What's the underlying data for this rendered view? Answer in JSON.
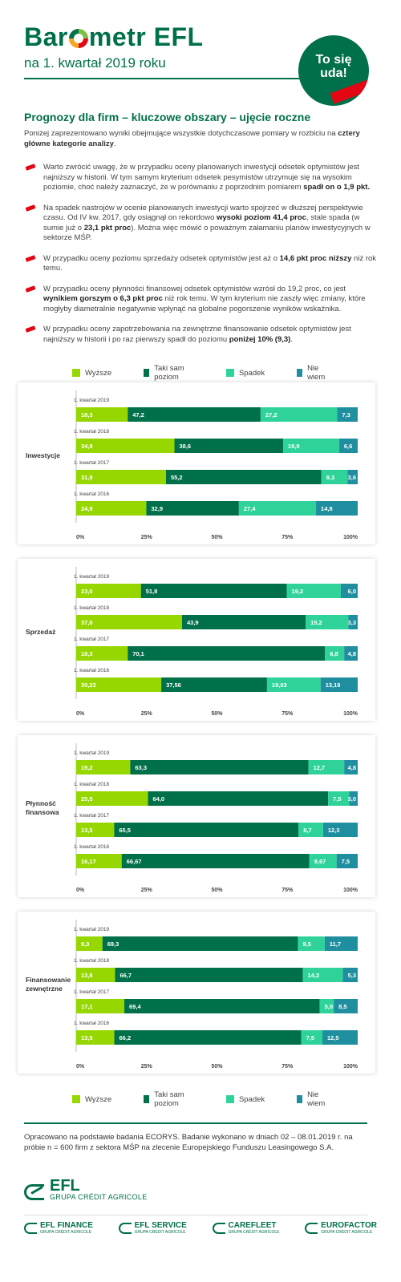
{
  "header": {
    "logo_text_left": "Bar",
    "logo_text_right": "metr EFL",
    "subtitle": "na 1. kwartał 2019 roku",
    "badge_line1": "To się",
    "badge_line2": "uda!"
  },
  "section_title": "Prognozy dla firm – kluczowe obszary – ujęcie roczne",
  "intro": {
    "text_before": "Poniżej zaprezentowano wyniki obejmujące wszystkie dotychczasowe pomiary w rozbiciu na ",
    "bold": "cztery główne kategorie analizy",
    "text_after": "."
  },
  "bullets": [
    {
      "parts": [
        {
          "t": "Warto zwrócić uwagę, że w przypadku oceny planowanych inwestycji odsetek optymistów jest najniższy w historii. W tym samym kryterium odsetek pesymistów utrzymuje się na wysokim poziomie, choć należy zaznaczyć, że w porównaniu z poprzednim pomiarem ",
          "b": false
        },
        {
          "t": "spadł on o 1,9 pkt.",
          "b": true
        }
      ]
    },
    {
      "parts": [
        {
          "t": "Na spadek nastrojów w ocenie planowanych inwestycji warto spojrzeć w dłuższej perspektywie czasu. Od IV kw. 2017, gdy osiągnął on rekordowo ",
          "b": false
        },
        {
          "t": "wysoki poziom 41,4 proc",
          "b": true
        },
        {
          "t": ", stale spada (w sumie już o ",
          "b": false
        },
        {
          "t": "23,1 pkt proc",
          "b": true
        },
        {
          "t": "). Można więc mówić o poważnym załamaniu planów inwestycyjnych w sektorze MŚP.",
          "b": false
        }
      ]
    },
    {
      "parts": [
        {
          "t": "W przypadku oceny poziomu sprzedaży odsetek optymistów jest aż o ",
          "b": false
        },
        {
          "t": "14,6 pkt proc niższy",
          "b": true
        },
        {
          "t": " niż rok temu.",
          "b": false
        }
      ]
    },
    {
      "parts": [
        {
          "t": "W przypadku oceny płynności finansowej odsetek optymistów wzrósł do 19,2 proc, co jest ",
          "b": false
        },
        {
          "t": "wynikiem gorszym o 6,3 pkt proc",
          "b": true
        },
        {
          "t": " niż rok temu. W tym kryterium nie zaszły więc zmiany, które mogłyby diametralnie negatywnie wpłynąć na globalne pogorszenie wyników wskaźnika.",
          "b": false
        }
      ]
    },
    {
      "parts": [
        {
          "t": "W przypadku oceny zapotrzebowania na zewnętrzne finansowanie odsetek optymistów jest najniższy w historii i po raz pierwszy spadł do poziomu ",
          "b": false
        },
        {
          "t": "poniżej 10% (9,3)",
          "b": true
        },
        {
          "t": ".",
          "b": false
        }
      ]
    }
  ],
  "legend": [
    {
      "label": "Wyższe",
      "color": "#97d700"
    },
    {
      "label": "Taki sam poziom",
      "color": "#00704a"
    },
    {
      "label": "Spadek",
      "color": "#2fd39a"
    },
    {
      "label": "Nie wiem",
      "color": "#1f8fa0"
    }
  ],
  "chart_data": [
    {
      "type": "bar",
      "orientation": "horizontal",
      "stacked": true,
      "title": "Inwestycje",
      "categories": [
        "1. kwartał 2019",
        "1. kwartał 2018",
        "1. kwartał 2017",
        "1. kwartał 2016"
      ],
      "series": [
        {
          "name": "Wyższe",
          "values": [
            18.3,
            34.9,
            31.9,
            24.9
          ],
          "labels": [
            "18,3",
            "34,9",
            "31,9",
            "24,9"
          ]
        },
        {
          "name": "Taki sam poziom",
          "values": [
            47.2,
            38.6,
            55.2,
            32.9
          ],
          "labels": [
            "47,2",
            "38,6",
            "55,2",
            "32,9"
          ]
        },
        {
          "name": "Spadek",
          "values": [
            27.2,
            19.9,
            9.3,
            27.4
          ],
          "labels": [
            "27,2",
            "19,9",
            "9,3",
            "27,4"
          ]
        },
        {
          "name": "Nie wiem",
          "values": [
            7.3,
            6.6,
            3.6,
            14.8
          ],
          "labels": [
            "7,3",
            "6,6",
            "3,6",
            "14,8"
          ]
        }
      ],
      "xlim": [
        0,
        100
      ],
      "xticks": [
        "0%",
        "25%",
        "50%",
        "75%",
        "100%"
      ]
    },
    {
      "type": "bar",
      "orientation": "horizontal",
      "stacked": true,
      "title": "Sprzedaż",
      "categories": [
        "1. kwartał 2019",
        "1. kwartał 2018",
        "1. kwartał 2017",
        "1. kwartał 2016"
      ],
      "series": [
        {
          "name": "Wyższe",
          "values": [
            23.0,
            37.6,
            18.3,
            30.22
          ],
          "labels": [
            "23,0",
            "37,6",
            "18,3",
            "30,22"
          ]
        },
        {
          "name": "Taki sam poziom",
          "values": [
            51.8,
            43.9,
            70.1,
            37.56
          ],
          "labels": [
            "51,8",
            "43,9",
            "70,1",
            "37,56"
          ]
        },
        {
          "name": "Spadek",
          "values": [
            19.2,
            15.2,
            6.8,
            19.03
          ],
          "labels": [
            "19,2",
            "15,2",
            "6,8",
            "19,03"
          ]
        },
        {
          "name": "Nie wiem",
          "values": [
            6.0,
            3.3,
            4.8,
            13.19
          ],
          "labels": [
            "6,0",
            "3,3",
            "4,8",
            "13,19"
          ]
        }
      ],
      "xlim": [
        0,
        100
      ],
      "xticks": [
        "0%",
        "25%",
        "50%",
        "75%",
        "100%"
      ]
    },
    {
      "type": "bar",
      "orientation": "horizontal",
      "stacked": true,
      "title": "Płynność finansowa",
      "categories": [
        "1. kwartał 2019",
        "1. kwartał 2018",
        "1. kwartał 2017",
        "1. kwartał 2016"
      ],
      "series": [
        {
          "name": "Wyższe",
          "values": [
            19.2,
            25.5,
            13.5,
            16.17
          ],
          "labels": [
            "19,2",
            "25,5",
            "13,5",
            "16,17"
          ]
        },
        {
          "name": "Taki sam poziom",
          "values": [
            63.3,
            64.0,
            65.5,
            66.67
          ],
          "labels": [
            "63,3",
            "64,0",
            "65,5",
            "66,67"
          ]
        },
        {
          "name": "Spadek",
          "values": [
            12.7,
            7.5,
            8.7,
            9.67
          ],
          "labels": [
            "12,7",
            "7,5",
            "8,7",
            "9,67"
          ]
        },
        {
          "name": "Nie wiem",
          "values": [
            4.8,
            3.0,
            12.3,
            7.5
          ],
          "labels": [
            "4,8",
            "3,0",
            "12,3",
            "7,5"
          ]
        }
      ],
      "xlim": [
        0,
        100
      ],
      "xticks": [
        "0%",
        "25%",
        "50%",
        "75%",
        "100%"
      ]
    },
    {
      "type": "bar",
      "orientation": "horizontal",
      "stacked": true,
      "title": "Finansowanie zewnętrzne",
      "categories": [
        "1. kwartał 2019",
        "1. kwartał 2018",
        "1. kwartał 2017",
        "1. kwartał 2016"
      ],
      "series": [
        {
          "name": "Wyższe",
          "values": [
            9.3,
            13.8,
            17.1,
            13.5
          ],
          "labels": [
            "9,3",
            "13,8",
            "17,1",
            "13,5"
          ]
        },
        {
          "name": "Taki sam poziom",
          "values": [
            69.3,
            66.7,
            69.4,
            66.2
          ],
          "labels": [
            "69,3",
            "66,7",
            "69,4",
            "66,2"
          ]
        },
        {
          "name": "Spadek",
          "values": [
            9.5,
            14.2,
            5.0,
            7.5
          ],
          "labels": [
            "9,5",
            "14,2",
            "5,0",
            "7,5"
          ]
        },
        {
          "name": "Nie wiem",
          "values": [
            11.7,
            5.3,
            8.5,
            12.5
          ],
          "labels": [
            "11,7",
            "5,3",
            "8,5",
            "12,5"
          ]
        }
      ],
      "xlim": [
        0,
        100
      ],
      "xticks": [
        "0%",
        "25%",
        "50%",
        "75%",
        "100%"
      ]
    }
  ],
  "footnote": "Opracowano na podstawie badania ECORYS. Badanie wykonano w dniach 02 – 08.01.2019 r. na próbie n = 600 firm z sektora MŚP na zlecenie Europejskiego Funduszu Leasingowego S.A.",
  "footer_logo": {
    "name": "EFL",
    "group": "GRUPA CRÉDIT AGRICOLE"
  },
  "partners": [
    {
      "name": "EFL FINANCE",
      "group": "GRUPA CRÉDIT AGRICOLE"
    },
    {
      "name": "EFL SERVICE",
      "group": "GRUPA CRÉDIT AGRICOLE"
    },
    {
      "name": "CAREFLEET",
      "group": "GRUPA CRÉDIT AGRICOLE"
    },
    {
      "name": "EUROFACTOR",
      "group": "GRUPA CRÉDIT AGRICOLE"
    }
  ]
}
